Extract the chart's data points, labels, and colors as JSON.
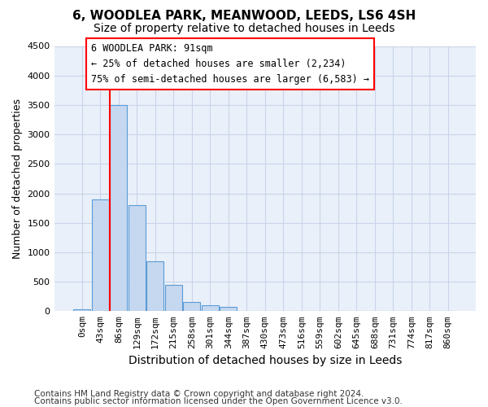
{
  "title_line1": "6, WOODLEA PARK, MEANWOOD, LEEDS, LS6 4SH",
  "title_line2": "Size of property relative to detached houses in Leeds",
  "xlabel": "Distribution of detached houses by size in Leeds",
  "ylabel": "Number of detached properties",
  "bar_color": "#c5d8f0",
  "bar_edge_color": "#5b9bd5",
  "bins": [
    "0sqm",
    "43sqm",
    "86sqm",
    "129sqm",
    "172sqm",
    "215sqm",
    "258sqm",
    "301sqm",
    "344sqm",
    "387sqm",
    "430sqm",
    "473sqm",
    "516sqm",
    "559sqm",
    "602sqm",
    "645sqm",
    "688sqm",
    "731sqm",
    "774sqm",
    "817sqm",
    "860sqm"
  ],
  "values": [
    30,
    1900,
    3500,
    1800,
    850,
    450,
    160,
    100,
    70,
    10,
    5,
    0,
    0,
    0,
    0,
    0,
    0,
    0,
    0,
    0,
    0
  ],
  "ylim": [
    0,
    4500
  ],
  "yticks": [
    0,
    500,
    1000,
    1500,
    2000,
    2500,
    3000,
    3500,
    4000,
    4500
  ],
  "vline_x": 1.5,
  "annotation_text": "6 WOODLEA PARK: 91sqm\n← 25% of detached houses are smaller (2,234)\n75% of semi-detached houses are larger (6,583) →",
  "annotation_box_color": "white",
  "annotation_box_edgecolor": "red",
  "vline_color": "red",
  "footer_line1": "Contains HM Land Registry data © Crown copyright and database right 2024.",
  "footer_line2": "Contains public sector information licensed under the Open Government Licence v3.0.",
  "background_color": "white",
  "axes_bg_color": "#eaf0fa",
  "grid_color": "#c8d4e8",
  "title_fontsize": 11,
  "subtitle_fontsize": 10,
  "xlabel_fontsize": 10,
  "ylabel_fontsize": 9,
  "tick_fontsize": 8,
  "annotation_fontsize": 8.5,
  "footer_fontsize": 7.5
}
